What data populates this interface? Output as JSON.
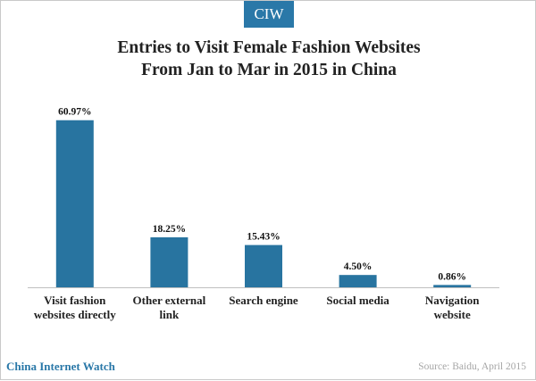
{
  "brand": {
    "badge": "CIW",
    "name": "China Internet Watch",
    "color": "#2a78a8"
  },
  "source": "Source: Baidu, April 2015",
  "chart_data": {
    "type": "bar",
    "title": "Entries to Visit Female Fashion Websites From Jan to Mar in 2015 in China",
    "title_lines": [
      "Entries to Visit Female Fashion Websites",
      "From Jan to Mar in 2015 in China"
    ],
    "categories": [
      [
        "Visit fashion",
        "websites directly"
      ],
      [
        "Other external",
        "link"
      ],
      [
        "Search engine"
      ],
      [
        "Social media"
      ],
      [
        "Navigation",
        "website"
      ]
    ],
    "values": [
      60.97,
      18.25,
      15.43,
      4.5,
      0.86
    ],
    "data_labels": [
      "60.97%",
      "18.25%",
      "15.43%",
      "4.50%",
      "0.86%"
    ],
    "bar_color": "#2874a0",
    "ylim": [
      0,
      70
    ],
    "grid": false,
    "legend": "none"
  }
}
